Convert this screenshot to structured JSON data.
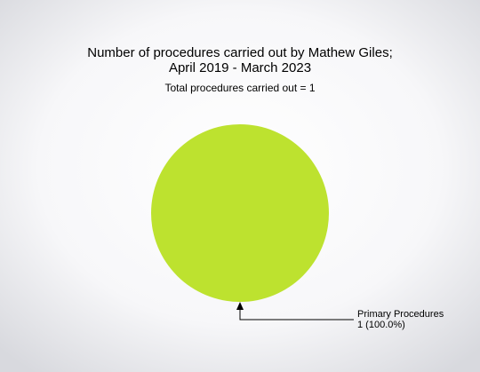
{
  "chart_data": {
    "type": "pie",
    "title": [
      "Number of procedures carried out by Mathew Giles;",
      "April 2019 - March 2023"
    ],
    "subtitle": "Total procedures carried out = 1",
    "categories": [
      "Primary Procedures"
    ],
    "values": [
      1
    ],
    "value_labels": [
      "1 (100.0%)"
    ],
    "colors": [
      "#bde22f"
    ]
  }
}
